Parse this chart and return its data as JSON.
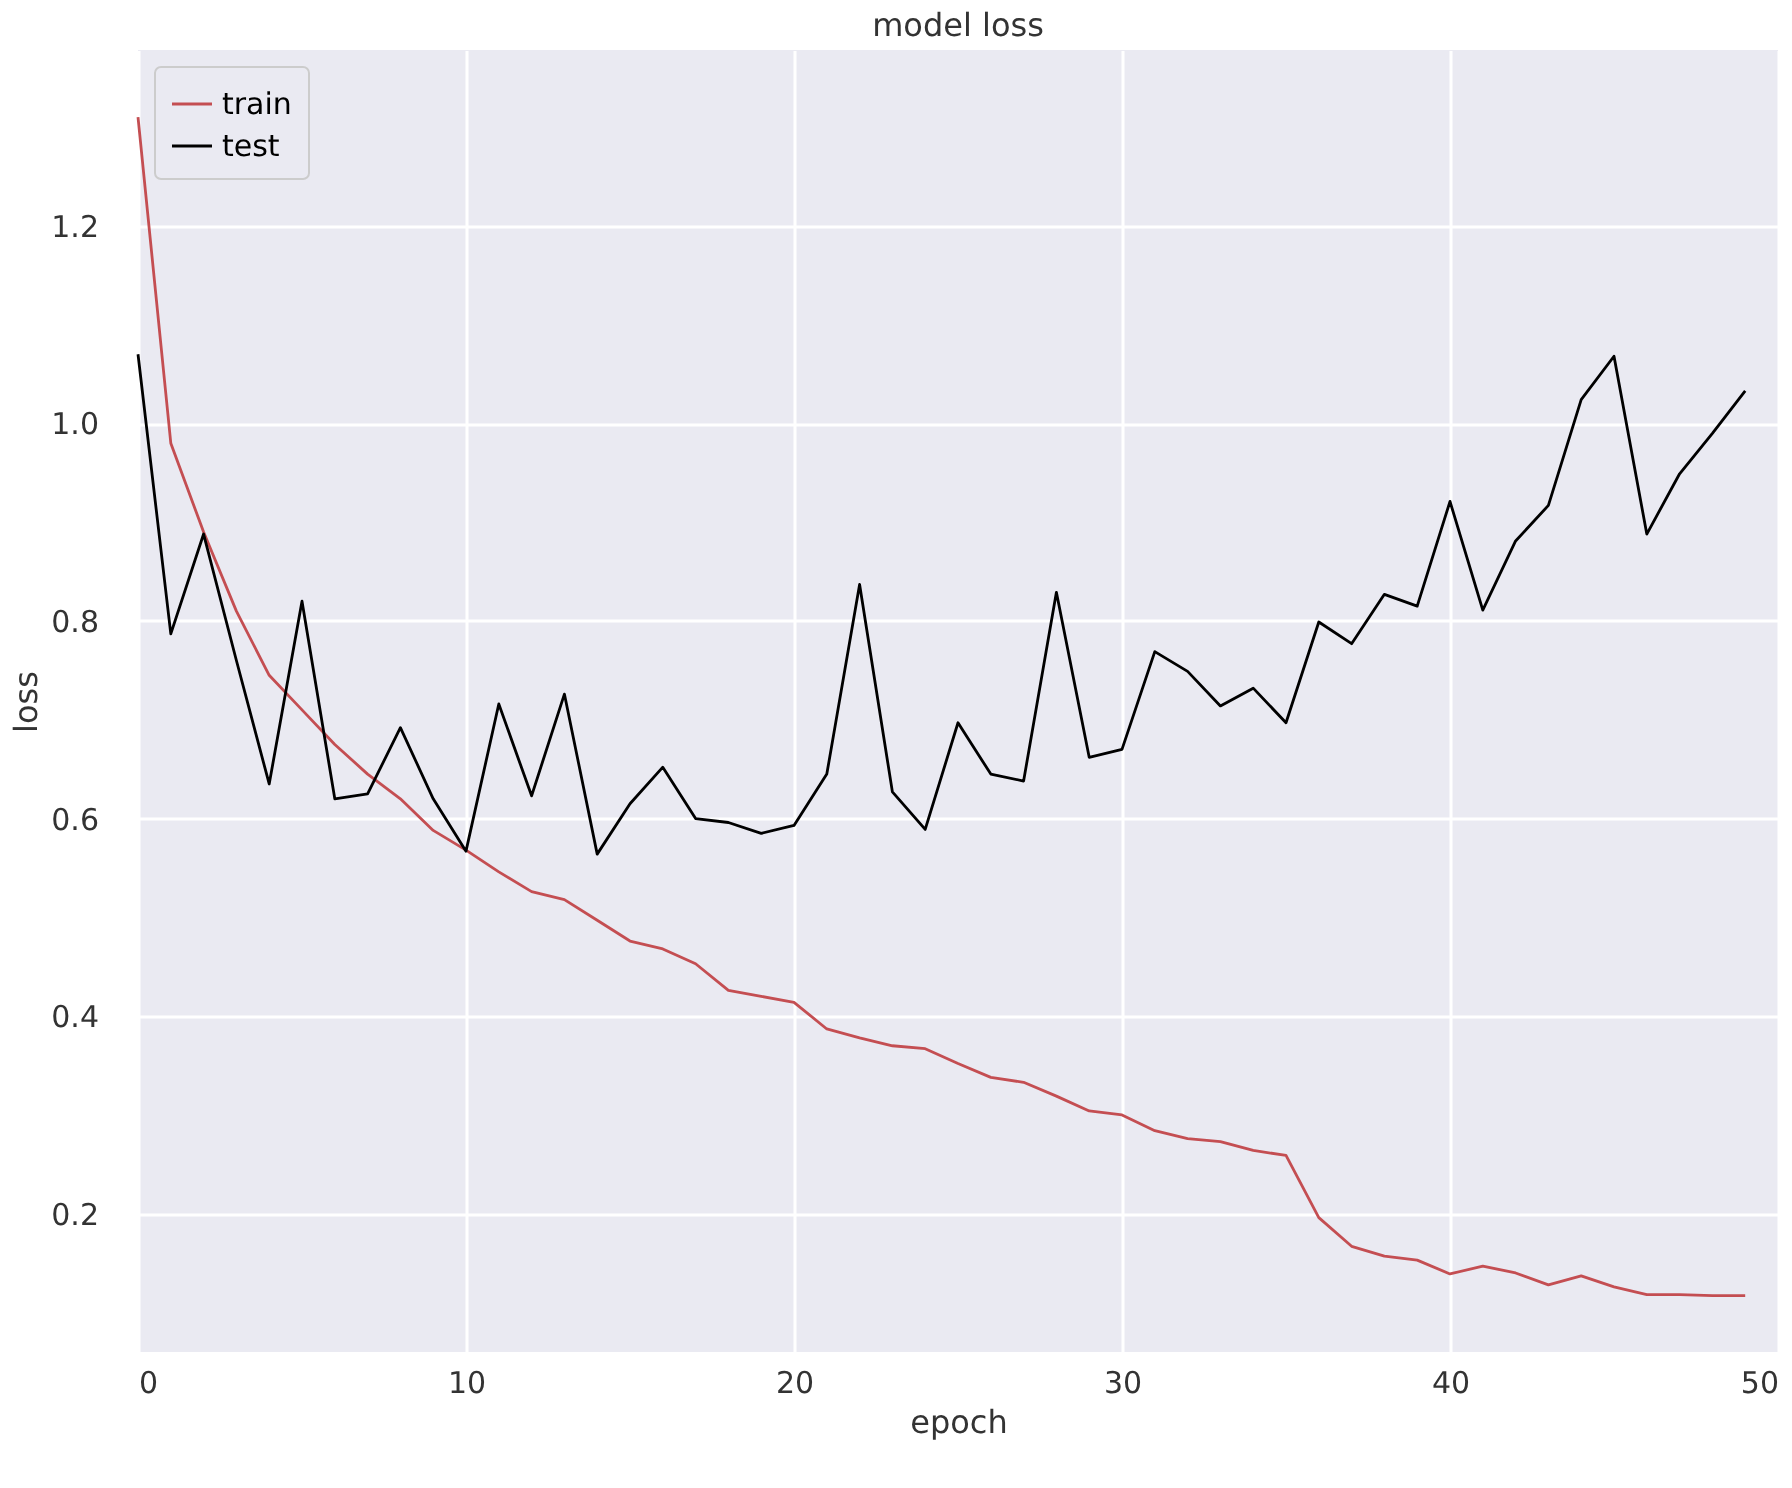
{
  "chart_data": {
    "type": "line",
    "title": "model loss",
    "xlabel": "epoch",
    "ylabel": "loss",
    "x": [
      0,
      1,
      2,
      3,
      4,
      5,
      6,
      7,
      8,
      9,
      10,
      11,
      12,
      13,
      14,
      15,
      16,
      17,
      18,
      19,
      20,
      21,
      22,
      23,
      24,
      25,
      26,
      27,
      28,
      29,
      30,
      31,
      32,
      33,
      34,
      35,
      36,
      37,
      38,
      39,
      40,
      41,
      42,
      43,
      44,
      45,
      46,
      47,
      48,
      49
    ],
    "series": [
      {
        "name": "train",
        "color": "#c44e52",
        "values": [
          1.31,
          0.98,
          0.89,
          0.81,
          0.745,
          0.71,
          0.675,
          0.645,
          0.62,
          0.588,
          0.568,
          0.546,
          0.526,
          0.518,
          0.497,
          0.476,
          0.468,
          0.453,
          0.426,
          0.42,
          0.414,
          0.387,
          0.378,
          0.37,
          0.367,
          0.352,
          0.338,
          0.333,
          0.319,
          0.304,
          0.3,
          0.284,
          0.276,
          0.273,
          0.264,
          0.259,
          0.196,
          0.167,
          0.157,
          0.153,
          0.139,
          0.147,
          0.14,
          0.128,
          0.137,
          0.126,
          0.118,
          0.118,
          0.117,
          0.117
        ]
      },
      {
        "name": "test",
        "color": "#000000",
        "values": [
          1.07,
          0.787,
          0.888,
          0.76,
          0.635,
          0.82,
          0.62,
          0.625,
          0.692,
          0.62,
          0.567,
          0.716,
          0.623,
          0.726,
          0.564,
          0.615,
          0.652,
          0.6,
          0.596,
          0.585,
          0.593,
          0.645,
          0.837,
          0.627,
          0.589,
          0.697,
          0.645,
          0.638,
          0.829,
          0.662,
          0.67,
          0.769,
          0.749,
          0.714,
          0.732,
          0.697,
          0.799,
          0.777,
          0.827,
          0.815,
          0.921,
          0.811,
          0.881,
          0.917,
          1.024,
          1.068,
          0.888,
          0.949,
          0.99,
          1.033
        ]
      }
    ],
    "xlim": [
      0,
      50
    ],
    "ylim": [
      0.06,
      1.378
    ],
    "xticks": [
      0,
      10,
      20,
      30,
      40,
      50
    ],
    "yticks": [
      0.2,
      0.4,
      0.6,
      0.8,
      {
        "value": 1,
        "label": "1.0"
      },
      1.2
    ],
    "grid": true,
    "legend": "top left",
    "marker": "none",
    "line_style": "solid"
  }
}
